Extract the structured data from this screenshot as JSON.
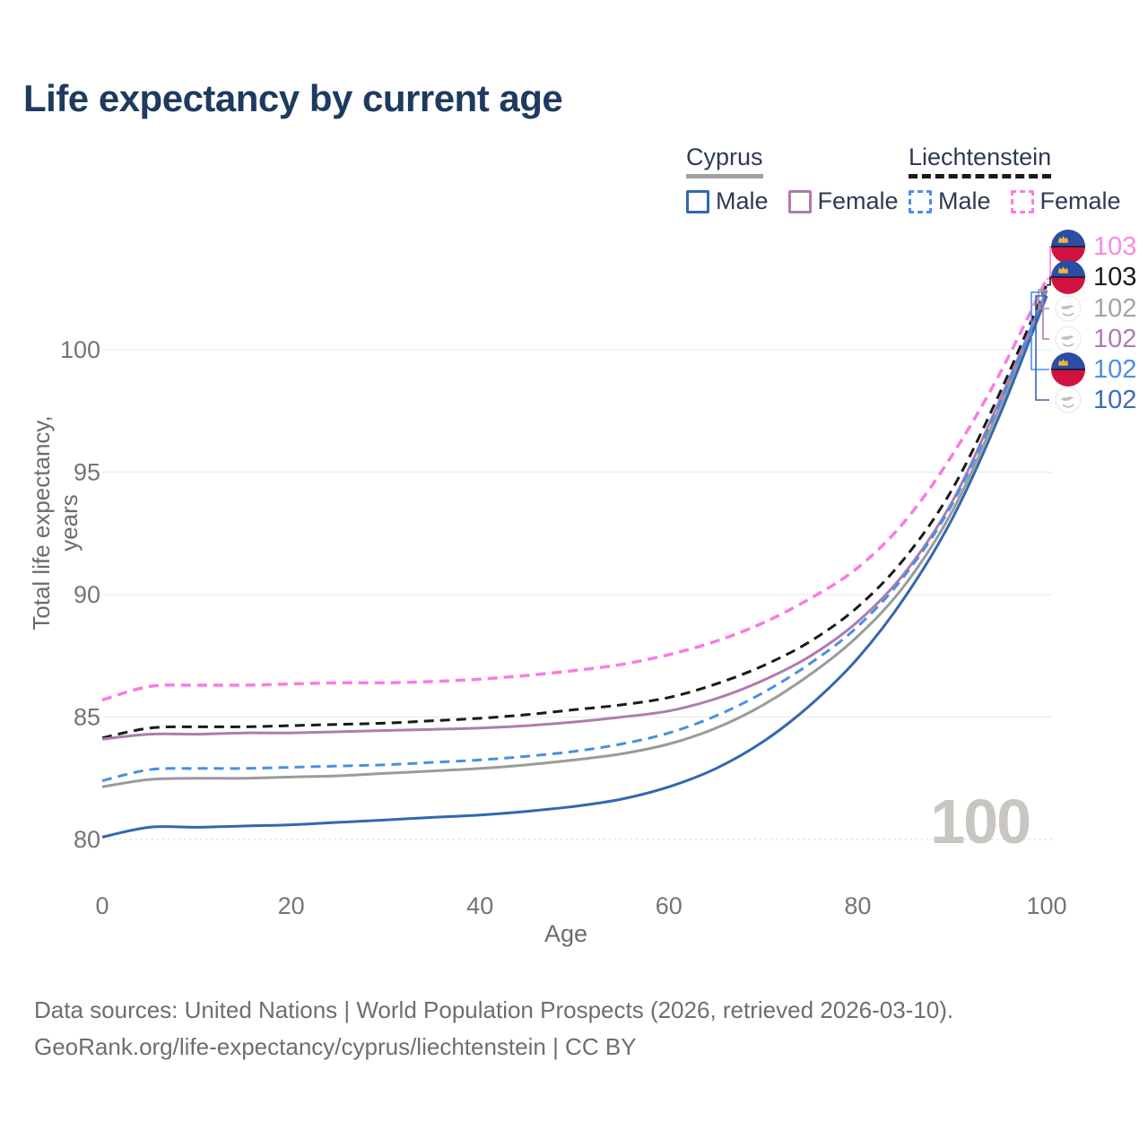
{
  "page": {
    "title": "Life expectancy by current age",
    "footer": {
      "line1": "Data sources: United Nations | World Population Prospects (2026, retrieved 2026-03-10).",
      "line2": "GeoRank.org/life-expectancy/cyprus/liechtenstein | CC BY"
    }
  },
  "legend": {
    "groups": [
      {
        "label": "Cyprus",
        "underline_style": "solid",
        "underline_color": "#a0a0a0",
        "items": [
          {
            "label": "Male",
            "color": "#3367b0",
            "dash": false
          },
          {
            "label": "Female",
            "color": "#ae7cae",
            "dash": false
          }
        ]
      },
      {
        "label": "Liechtenstein",
        "underline_style": "dashed",
        "underline_color": "#1a1a1a",
        "items": [
          {
            "label": "Male",
            "color": "#4a8fe4",
            "dash": true
          },
          {
            "label": "Female",
            "color": "#f97ce1",
            "dash": true
          }
        ]
      }
    ]
  },
  "chart_data": {
    "type": "line",
    "title": "Life expectancy by current age",
    "xlabel": "Age",
    "ylabel": "Total life expectancy, years",
    "watermark": "100",
    "x_ticks": [
      0,
      20,
      40,
      60,
      80,
      100
    ],
    "y_ticks": [
      80,
      85,
      90,
      95,
      100
    ],
    "xlim": [
      0,
      100
    ],
    "ylim": [
      79,
      103.5
    ],
    "grid": "horizontal",
    "legend_position": "top-right",
    "x": [
      0,
      5,
      10,
      15,
      20,
      25,
      30,
      35,
      40,
      45,
      50,
      55,
      60,
      65,
      70,
      75,
      80,
      85,
      90,
      95,
      100
    ],
    "series": [
      {
        "id": "li-female",
        "country": "Liechtenstein",
        "sex": "Female",
        "color": "#f97ce1",
        "label_color": "#f98ae4",
        "dash": true,
        "width": 3.5,
        "icon": "liechtenstein",
        "end_label": "103",
        "values": [
          85.7,
          86.25,
          86.3,
          86.3,
          86.35,
          86.4,
          86.4,
          86.45,
          86.55,
          86.7,
          86.9,
          87.15,
          87.55,
          88.1,
          88.85,
          89.85,
          91.1,
          93.0,
          95.7,
          99.0,
          102.9
        ]
      },
      {
        "id": "li-total",
        "country": "Liechtenstein",
        "sex": "Total",
        "color": "#1a1a1a",
        "label_color": "#1a1a1a",
        "dash": true,
        "width": 3,
        "icon": "liechtenstein",
        "end_label": "103",
        "values": [
          84.15,
          84.55,
          84.6,
          84.6,
          84.65,
          84.7,
          84.75,
          84.85,
          84.95,
          85.1,
          85.3,
          85.5,
          85.8,
          86.35,
          87.1,
          88.1,
          89.5,
          91.5,
          94.3,
          98.2,
          102.65
        ]
      },
      {
        "id": "cy-total",
        "country": "Cyprus",
        "sex": "Total",
        "color": "#9b9b9b",
        "label_color": "#a3a3a3",
        "dash": false,
        "width": 3,
        "icon": "cyprus",
        "end_label": "102",
        "values": [
          82.15,
          82.45,
          82.5,
          82.5,
          82.55,
          82.6,
          82.7,
          82.8,
          82.9,
          83.05,
          83.25,
          83.5,
          83.9,
          84.55,
          85.5,
          86.75,
          88.3,
          90.4,
          93.4,
          97.6,
          102.45
        ]
      },
      {
        "id": "cy-female",
        "country": "Cyprus",
        "sex": "Female",
        "color": "#ae7cae",
        "label_color": "#b27ab2",
        "dash": false,
        "width": 3,
        "icon": "cyprus",
        "end_label": "102",
        "values": [
          84.1,
          84.3,
          84.3,
          84.35,
          84.35,
          84.4,
          84.45,
          84.5,
          84.55,
          84.65,
          84.8,
          85.0,
          85.25,
          85.75,
          86.5,
          87.5,
          88.9,
          90.9,
          93.8,
          97.9,
          102.4
        ]
      },
      {
        "id": "li-male",
        "country": "Liechtenstein",
        "sex": "Male",
        "color": "#4a8fe4",
        "label_color": "#4a90e8",
        "dash": true,
        "width": 3,
        "icon": "liechtenstein",
        "end_label": "102",
        "values": [
          82.4,
          82.85,
          82.9,
          82.9,
          82.95,
          83.0,
          83.05,
          83.15,
          83.25,
          83.4,
          83.6,
          83.9,
          84.35,
          85.05,
          86.0,
          87.2,
          88.7,
          90.8,
          93.7,
          97.8,
          102.35
        ]
      },
      {
        "id": "cy-male",
        "country": "Cyprus",
        "sex": "Male",
        "color": "#3367b0",
        "label_color": "#3a6db8",
        "dash": false,
        "width": 3,
        "icon": "cyprus",
        "end_label": "102",
        "values": [
          80.1,
          80.5,
          80.5,
          80.55,
          80.6,
          80.7,
          80.8,
          80.9,
          81.0,
          81.15,
          81.35,
          81.65,
          82.15,
          82.9,
          84.0,
          85.5,
          87.4,
          89.9,
          93.1,
          97.3,
          102.2
        ]
      }
    ],
    "colors": {
      "title": "#1e3a5f",
      "tick_label": "#757575",
      "axis_title": "#6b6b6b",
      "grid": "#ececf2",
      "grid_bottom_dotted": "#d9d9de",
      "watermark": "#c9c6c1",
      "footer": "#6e6e6e"
    }
  }
}
